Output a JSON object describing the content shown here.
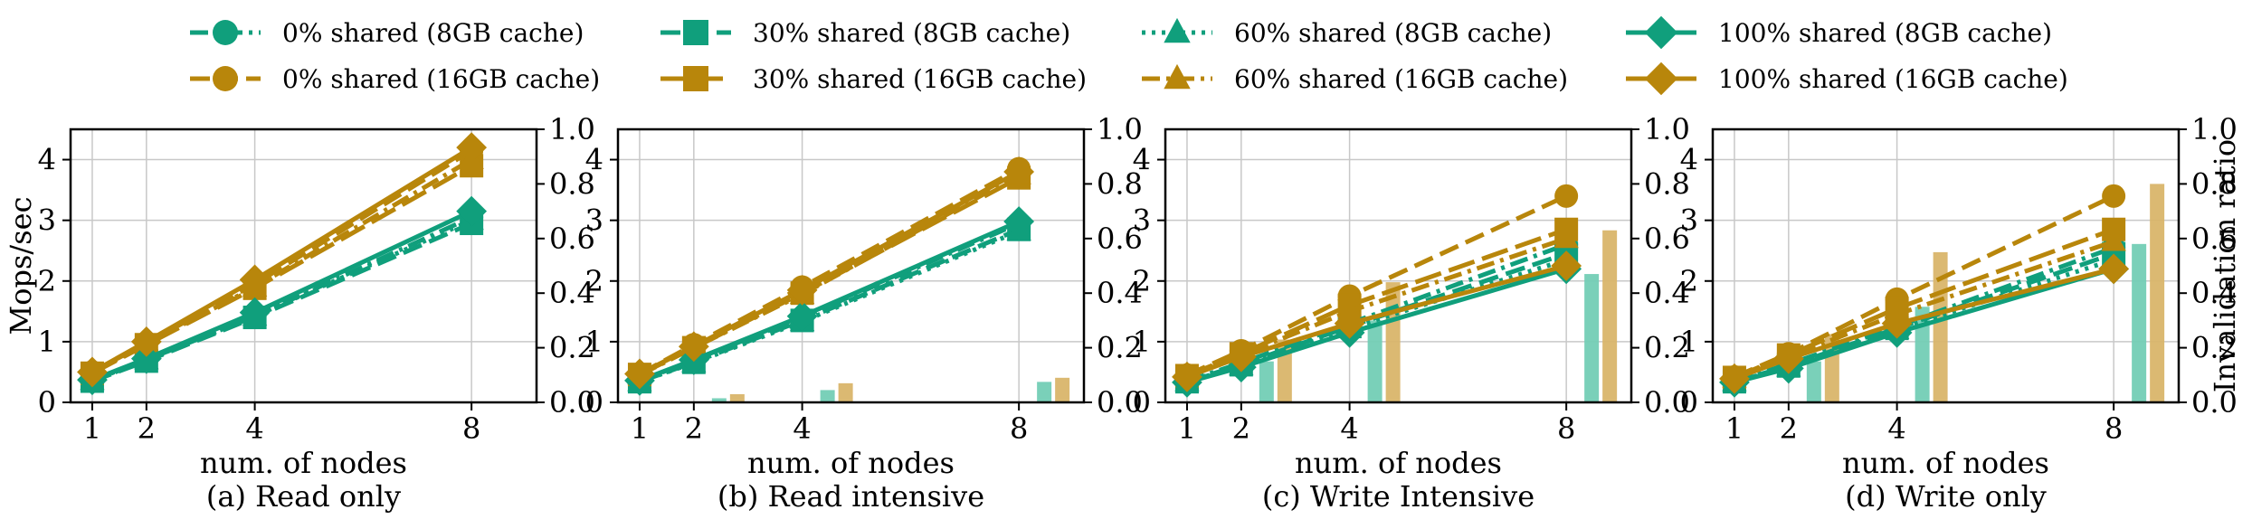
{
  "legend": {
    "position": "top",
    "entries": [
      {
        "series": "0% shared (8GB cache)",
        "label": "0% shared (8GB cache)",
        "color": "#109f7c",
        "marker": "circle",
        "dash": "dashdot"
      },
      {
        "series": "0% shared (16GB cache)",
        "label": "0% shared (16GB cache)",
        "color": "#b8860b",
        "marker": "circle",
        "dash": "dash"
      },
      {
        "series": "30% shared (8GB cache)",
        "label": "30% shared (8GB cache)",
        "color": "#109f7c",
        "marker": "square",
        "dash": "dash"
      },
      {
        "series": "30% shared (16GB cache)",
        "label": "30% shared (16GB cache)",
        "color": "#b8860b",
        "marker": "square",
        "dash": "longdash"
      },
      {
        "series": "60% shared (8GB cache)",
        "label": "60% shared (8GB cache)",
        "color": "#109f7c",
        "marker": "triangle",
        "dash": "dotted"
      },
      {
        "series": "60% shared (16GB cache)",
        "label": "60% shared (16GB cache)",
        "color": "#b8860b",
        "marker": "triangle",
        "dash": "dashdot"
      },
      {
        "series": "100% shared (8GB cache)",
        "label": "100% shared (8GB cache)",
        "color": "#109f7c",
        "marker": "diamond",
        "dash": "solid"
      },
      {
        "series": "100% shared (16GB cache)",
        "label": "100% shared (16GB cache)",
        "color": "#b8860b",
        "marker": "diamond",
        "dash": "solid"
      }
    ]
  },
  "bar_colors": {
    "8GB": "#73cdb5",
    "16GB": "#d9b56a"
  },
  "chart_data": [
    {
      "type": "line",
      "title": "(a) Read only",
      "xlabel": "num. of nodes",
      "ylabel": "Mops/sec",
      "ylabel_right": "",
      "x": [
        1,
        2,
        4,
        8
      ],
      "xlim": [
        0.6,
        9.2
      ],
      "ylim": [
        0,
        4.5
      ],
      "yticks": [
        0,
        1,
        2,
        3,
        4
      ],
      "y2lim": [
        0,
        1.0
      ],
      "y2ticks": [
        "0.0",
        "0.2",
        "0.4",
        "0.6",
        "0.8",
        "1.0"
      ],
      "grid": true,
      "series": [
        {
          "name": "0% shared (8GB cache)",
          "values": [
            0.35,
            0.7,
            1.42,
            3.05
          ]
        },
        {
          "name": "0% shared (16GB cache)",
          "values": [
            0.5,
            0.98,
            1.95,
            4.15
          ]
        },
        {
          "name": "30% shared (8GB cache)",
          "values": [
            0.35,
            0.68,
            1.4,
            2.95
          ]
        },
        {
          "name": "30% shared (16GB cache)",
          "values": [
            0.48,
            0.95,
            1.88,
            3.9
          ]
        },
        {
          "name": "60% shared (8GB cache)",
          "values": [
            0.36,
            0.7,
            1.42,
            3.0
          ]
        },
        {
          "name": "60% shared (16GB cache)",
          "values": [
            0.49,
            0.97,
            1.9,
            4.0
          ]
        },
        {
          "name": "100% shared (8GB cache)",
          "values": [
            0.37,
            0.72,
            1.48,
            3.15
          ]
        },
        {
          "name": "100% shared (16GB cache)",
          "values": [
            0.5,
            1.0,
            2.02,
            4.2
          ]
        }
      ],
      "bars": [
        {
          "name": "Invalidation ratio (8GB cache)",
          "x": [
            1,
            2,
            4,
            8
          ],
          "values": [
            0,
            0,
            0,
            0
          ]
        },
        {
          "name": "Invalidation ratio (16GB cache)",
          "x": [
            1,
            2,
            4,
            8
          ],
          "values": [
            0,
            0,
            0,
            0
          ]
        }
      ]
    },
    {
      "type": "line",
      "title": "(b) Read intensive",
      "xlabel": "num. of nodes",
      "ylabel": "",
      "ylabel_right": "",
      "x": [
        1,
        2,
        4,
        8
      ],
      "xlim": [
        0.6,
        9.2
      ],
      "ylim": [
        0,
        4.5
      ],
      "yticks": [
        0,
        1,
        2,
        3,
        4
      ],
      "y2lim": [
        0,
        1.0
      ],
      "y2ticks": [
        "0.0",
        "0.2",
        "0.4",
        "0.6",
        "0.8",
        "1.0"
      ],
      "grid": true,
      "series": [
        {
          "name": "0% shared (8GB cache)",
          "values": [
            0.35,
            0.7,
            1.4,
            2.95
          ]
        },
        {
          "name": "0% shared (16GB cache)",
          "values": [
            0.47,
            0.95,
            1.9,
            3.85
          ]
        },
        {
          "name": "30% shared (8GB cache)",
          "values": [
            0.34,
            0.66,
            1.35,
            2.85
          ]
        },
        {
          "name": "30% shared (16GB cache)",
          "values": [
            0.46,
            0.9,
            1.8,
            3.7
          ]
        },
        {
          "name": "60% shared (8GB cache)",
          "values": [
            0.34,
            0.65,
            1.33,
            2.82
          ]
        },
        {
          "name": "60% shared (16GB cache)",
          "values": [
            0.45,
            0.9,
            1.78,
            3.75
          ]
        },
        {
          "name": "100% shared (8GB cache)",
          "values": [
            0.36,
            0.7,
            1.42,
            2.98
          ]
        },
        {
          "name": "100% shared (16GB cache)",
          "values": [
            0.47,
            0.92,
            1.85,
            3.8
          ]
        }
      ],
      "bars": [
        {
          "name": "Invalidation ratio (8GB cache)",
          "x": [
            1,
            2,
            4,
            8
          ],
          "values": [
            0.0,
            0.015,
            0.045,
            0.075
          ]
        },
        {
          "name": "Invalidation ratio (16GB cache)",
          "x": [
            1,
            2,
            4,
            8
          ],
          "values": [
            0.0,
            0.03,
            0.07,
            0.09
          ]
        }
      ]
    },
    {
      "type": "line",
      "title": "(c) Write Intensive",
      "xlabel": "num. of nodes",
      "ylabel": "",
      "ylabel_right": "",
      "x": [
        1,
        2,
        4,
        8
      ],
      "xlim": [
        0.6,
        9.2
      ],
      "ylim": [
        0,
        4.5
      ],
      "yticks": [
        0,
        1,
        2,
        3,
        4
      ],
      "y2lim": [
        0,
        1.0
      ],
      "y2ticks": [
        "0.0",
        "0.2",
        "0.4",
        "0.6",
        "0.8",
        "1.0"
      ],
      "grid": true,
      "series": [
        {
          "name": "0% shared (8GB cache)",
          "values": [
            0.35,
            0.65,
            1.3,
            2.6
          ]
        },
        {
          "name": "0% shared (16GB cache)",
          "values": [
            0.45,
            0.85,
            1.75,
            3.4
          ]
        },
        {
          "name": "30% shared (8GB cache)",
          "values": [
            0.34,
            0.62,
            1.25,
            2.45
          ]
        },
        {
          "name": "30% shared (16GB cache)",
          "values": [
            0.44,
            0.8,
            1.6,
            2.85
          ]
        },
        {
          "name": "60% shared (8GB cache)",
          "values": [
            0.34,
            0.6,
            1.22,
            2.35
          ]
        },
        {
          "name": "60% shared (16GB cache)",
          "values": [
            0.43,
            0.78,
            1.5,
            2.7
          ]
        },
        {
          "name": "100% shared (8GB cache)",
          "values": [
            0.33,
            0.58,
            1.15,
            2.2
          ]
        },
        {
          "name": "100% shared (16GB cache)",
          "values": [
            0.42,
            0.75,
            1.3,
            2.25
          ]
        }
      ],
      "bars": [
        {
          "name": "Invalidation ratio (8GB cache)",
          "x": [
            1,
            2,
            4,
            8
          ],
          "values": [
            0.0,
            0.15,
            0.3,
            0.47
          ]
        },
        {
          "name": "Invalidation ratio (16GB cache)",
          "x": [
            1,
            2,
            4,
            8
          ],
          "values": [
            0.0,
            0.23,
            0.44,
            0.63
          ]
        }
      ]
    },
    {
      "type": "line",
      "title": "(d) Write only",
      "xlabel": "num. of nodes",
      "ylabel": "",
      "ylabel_right": "Invalidation ratio",
      "x": [
        1,
        2,
        4,
        8
      ],
      "xlim": [
        0.6,
        9.2
      ],
      "ylim": [
        0,
        4.5
      ],
      "yticks": [
        0,
        1,
        2,
        3,
        4
      ],
      "y2lim": [
        0,
        1.0
      ],
      "y2ticks": [
        "0.0",
        "0.2",
        "0.4",
        "0.6",
        "0.8",
        "1.0"
      ],
      "grid": true,
      "series": [
        {
          "name": "0% shared (8GB cache)",
          "values": [
            0.35,
            0.63,
            1.25,
            2.55
          ]
        },
        {
          "name": "0% shared (16GB cache)",
          "values": [
            0.42,
            0.8,
            1.7,
            3.4
          ]
        },
        {
          "name": "30% shared (8GB cache)",
          "values": [
            0.34,
            0.6,
            1.22,
            2.45
          ]
        },
        {
          "name": "30% shared (16GB cache)",
          "values": [
            0.41,
            0.78,
            1.55,
            2.85
          ]
        },
        {
          "name": "60% shared (8GB cache)",
          "values": [
            0.34,
            0.58,
            1.2,
            2.35
          ]
        },
        {
          "name": "60% shared (16GB cache)",
          "values": [
            0.4,
            0.75,
            1.45,
            2.65
          ]
        },
        {
          "name": "100% shared (8GB cache)",
          "values": [
            0.33,
            0.56,
            1.15,
            2.2
          ]
        },
        {
          "name": "100% shared (16GB cache)",
          "values": [
            0.39,
            0.72,
            1.3,
            2.2
          ]
        }
      ],
      "bars": [
        {
          "name": "Invalidation ratio (8GB cache)",
          "x": [
            1,
            2,
            4,
            8
          ],
          "values": [
            0.0,
            0.15,
            0.35,
            0.58
          ]
        },
        {
          "name": "Invalidation ratio (16GB cache)",
          "x": [
            1,
            2,
            4,
            8
          ],
          "values": [
            0.0,
            0.25,
            0.55,
            0.8
          ]
        }
      ]
    }
  ]
}
